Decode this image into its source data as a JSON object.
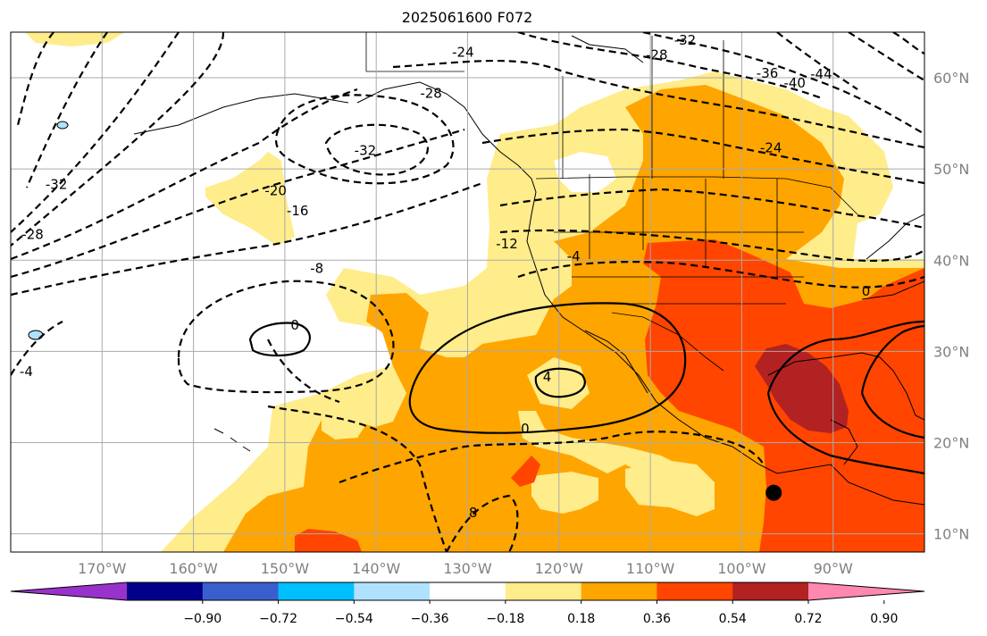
{
  "title": "2025061600 F072",
  "map": {
    "lon_range": [
      -180,
      -80
    ],
    "lat_range": [
      8,
      65
    ],
    "lon_ticks": [
      {
        "lon": -170,
        "label": "170°W"
      },
      {
        "lon": -160,
        "label": "160°W"
      },
      {
        "lon": -150,
        "label": "150°W"
      },
      {
        "lon": -140,
        "label": "140°W"
      },
      {
        "lon": -130,
        "label": "130°W"
      },
      {
        "lon": -120,
        "label": "120°W"
      },
      {
        "lon": -110,
        "label": "110°W"
      },
      {
        "lon": -100,
        "label": "100°W"
      },
      {
        "lon": -90,
        "label": "90°W"
      }
    ],
    "lat_ticks": [
      {
        "lat": 10,
        "label": "10°N"
      },
      {
        "lat": 20,
        "label": "20°N"
      },
      {
        "lat": 30,
        "label": "30°N"
      },
      {
        "lat": 40,
        "label": "40°N"
      },
      {
        "lat": 50,
        "label": "50°N"
      },
      {
        "lat": 60,
        "label": "60°N"
      }
    ],
    "marker": {
      "lon": -96.5,
      "lat": 14.5,
      "color": "#000000"
    },
    "contour_labels": [
      {
        "text": "-24",
        "lon": -130.5,
        "lat": 62.8
      },
      {
        "text": "-28",
        "lon": -134,
        "lat": 58.3
      },
      {
        "text": "-32",
        "lon": -141.2,
        "lat": 52
      },
      {
        "text": "-20",
        "lon": -151,
        "lat": 47.6
      },
      {
        "text": "-16",
        "lon": -148.6,
        "lat": 45.4
      },
      {
        "text": "-12",
        "lon": -125.7,
        "lat": 41.8
      },
      {
        "text": "-8",
        "lon": -146.5,
        "lat": 39.1
      },
      {
        "text": "-4",
        "lon": -118.4,
        "lat": 40.4
      },
      {
        "text": "0",
        "lon": -148.9,
        "lat": 32.9
      },
      {
        "text": "4",
        "lon": -121.3,
        "lat": 27.2
      },
      {
        "text": "0",
        "lon": -123.7,
        "lat": 21.5
      },
      {
        "text": "8",
        "lon": -129.4,
        "lat": 12.3
      },
      {
        "text": "-4",
        "lon": -178.3,
        "lat": 27.8
      },
      {
        "text": "-28",
        "lon": -177.6,
        "lat": 42.8
      },
      {
        "text": "-32",
        "lon": -175,
        "lat": 48.3
      },
      {
        "text": "-28",
        "lon": -109.3,
        "lat": 62.5
      },
      {
        "text": "-32",
        "lon": -106.2,
        "lat": 64.1
      },
      {
        "text": "-36",
        "lon": -97.2,
        "lat": 60.5
      },
      {
        "text": "-40",
        "lon": -94.2,
        "lat": 59.4
      },
      {
        "text": "-44",
        "lon": -91.3,
        "lat": 60.4
      },
      {
        "text": "-24",
        "lon": -96.8,
        "lat": 52.3
      },
      {
        "text": "0",
        "lon": -86.4,
        "lat": 36.6
      }
    ]
  },
  "colorbar": {
    "colors": [
      "#9932CC",
      "#00008B",
      "#3A5FCD",
      "#00BFFF",
      "#B0E2FF",
      "#FFFFFF",
      "#FFEC8B",
      "#FFA500",
      "#FF4500",
      "#B22222",
      "#FF88B0"
    ],
    "tick_labels": [
      "−0.90",
      "−0.72",
      "−0.54",
      "−0.36",
      "−0.18",
      "0.18",
      "0.36",
      "0.54",
      "0.72",
      "0.90"
    ]
  }
}
